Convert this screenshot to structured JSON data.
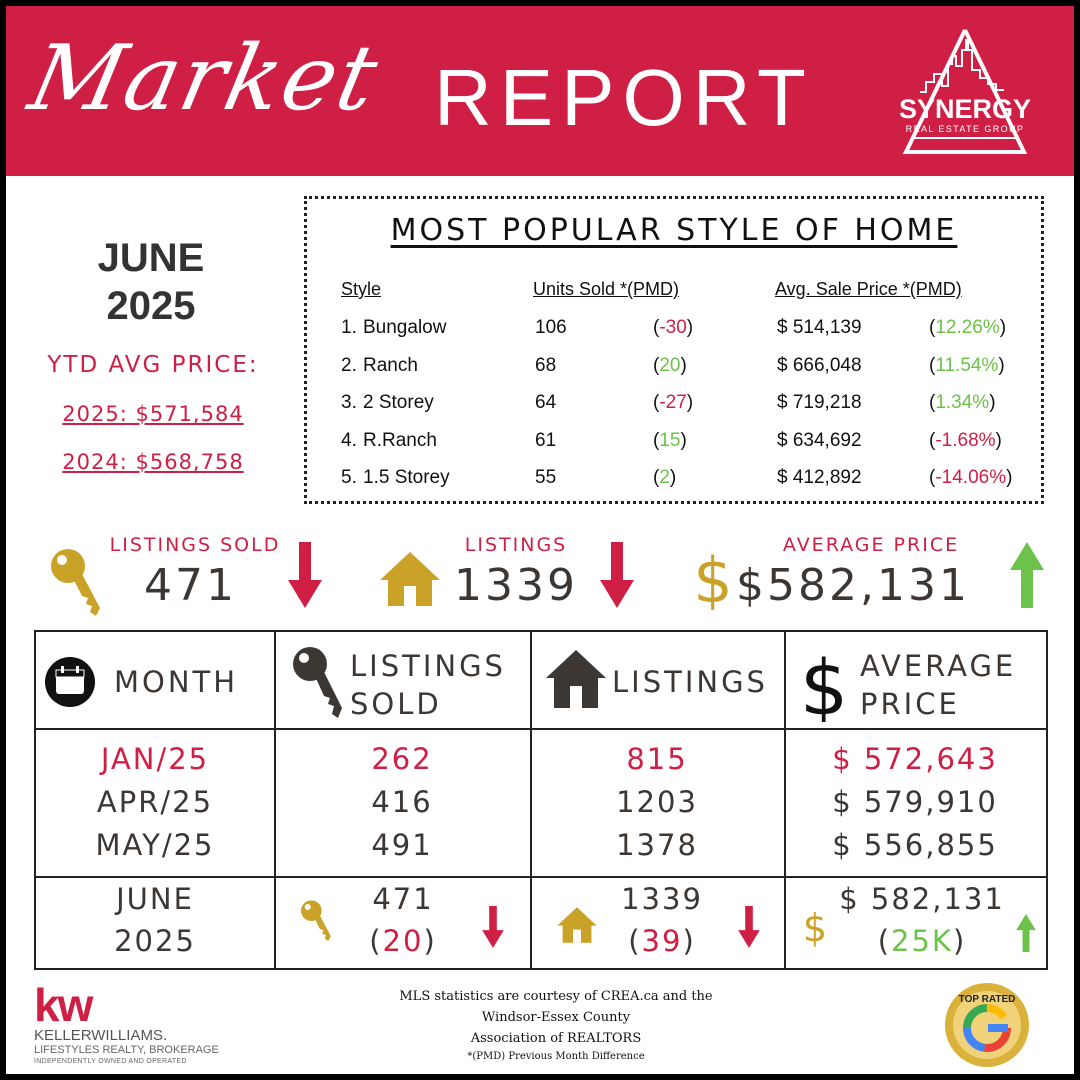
{
  "header": {
    "title_script": "Market",
    "title_main": "REPORT",
    "logo_name": "SYNERGY",
    "logo_sub": "REAL ESTATE GROUP"
  },
  "period": {
    "month": "JUNE",
    "year": "2025"
  },
  "ytd": {
    "label": "YTD AVG PRICE:",
    "line_2025": "2025: $571,584",
    "line_2024": "2024: $568,758"
  },
  "popular": {
    "title": "MOST POPULAR STYLE OF HOME",
    "headers": {
      "style": "Style",
      "units": "Units Sold *(PMD)",
      "price": "Avg. Sale Price *(PMD)"
    },
    "rows": [
      {
        "rank": "1.",
        "style": "Bungalow",
        "units": "106",
        "units_diff": "-30",
        "units_trend": "neg",
        "price": "$ 514,139",
        "price_diff": "12.26%",
        "price_trend": "pos"
      },
      {
        "rank": "2.",
        "style": "Ranch",
        "units": "68",
        "units_diff": "20",
        "units_trend": "pos",
        "price": "$ 666,048",
        "price_diff": "11.54%",
        "price_trend": "pos"
      },
      {
        "rank": "3.",
        "style": "2 Storey",
        "units": "64",
        "units_diff": "-27",
        "units_trend": "neg",
        "price": "$ 719,218",
        "price_diff": "1.34%",
        "price_trend": "pos"
      },
      {
        "rank": "4.",
        "style": "R.Ranch",
        "units": "61",
        "units_diff": "15",
        "units_trend": "pos",
        "price": "$ 634,692",
        "price_diff": "-1.68%",
        "price_trend": "neg"
      },
      {
        "rank": "5.",
        "style": "1.5 Storey",
        "units": "55",
        "units_diff": "2",
        "units_trend": "pos",
        "price": "$ 412,892",
        "price_diff": "-14.06%",
        "price_trend": "neg"
      }
    ]
  },
  "summary": {
    "sold": {
      "label": "LISTINGS SOLD",
      "value": "471",
      "trend": "down"
    },
    "listings": {
      "label": "LISTINGS",
      "value": "1339",
      "trend": "down"
    },
    "avg": {
      "label": "AVERAGE PRICE",
      "value": "$582,131",
      "trend": "up"
    }
  },
  "table": {
    "headers": {
      "month": "MONTH",
      "sold_1": "LISTINGS",
      "sold_2": "SOLD",
      "listings": "LISTINGS",
      "avg_1": "AVERAGE",
      "avg_2": "PRICE"
    },
    "rows": [
      {
        "month": "JAN/25",
        "sold": "262",
        "listings": "815",
        "avg": "$ 572,643",
        "highlight": true
      },
      {
        "month": "APR/25",
        "sold": "416",
        "listings": "1203",
        "avg": "$ 579,910",
        "highlight": false
      },
      {
        "month": "MAY/25",
        "sold": "491",
        "listings": "1378",
        "avg": "$ 556,855",
        "highlight": false
      }
    ],
    "current": {
      "month_1": "JUNE",
      "month_2": "2025",
      "sold": "471",
      "sold_diff": "20",
      "sold_trend": "down",
      "listings": "1339",
      "listings_diff": "39",
      "listings_trend": "down",
      "avg": "$ 582,131",
      "avg_diff": "25K",
      "avg_trend": "up"
    }
  },
  "footer": {
    "kw_mark": "kw",
    "kw_name": "KELLERWILLIAMS.",
    "kw_sub": "LIFESTYLES REALTY, BROKERAGE",
    "kw_tiny": "INDEPENDENTLY OWNED AND OPERATED",
    "credit_1": "MLS statistics are courtesy of CREA.ca and the",
    "credit_2": "Windsor-Essex County",
    "credit_3": "Association of REALTORS",
    "note": "*(PMD) Previous Month Difference",
    "badge_text": "TOP RATED"
  },
  "colors": {
    "brand_red": "#cf1f45",
    "gold": "#c9a227",
    "up_green": "#6cc24a",
    "text_dark": "#3d3734"
  },
  "icons": [
    "key-icon",
    "house-icon",
    "dollar-icon",
    "calendar-icon",
    "arrow-down-icon",
    "arrow-up-icon",
    "google-icon"
  ]
}
